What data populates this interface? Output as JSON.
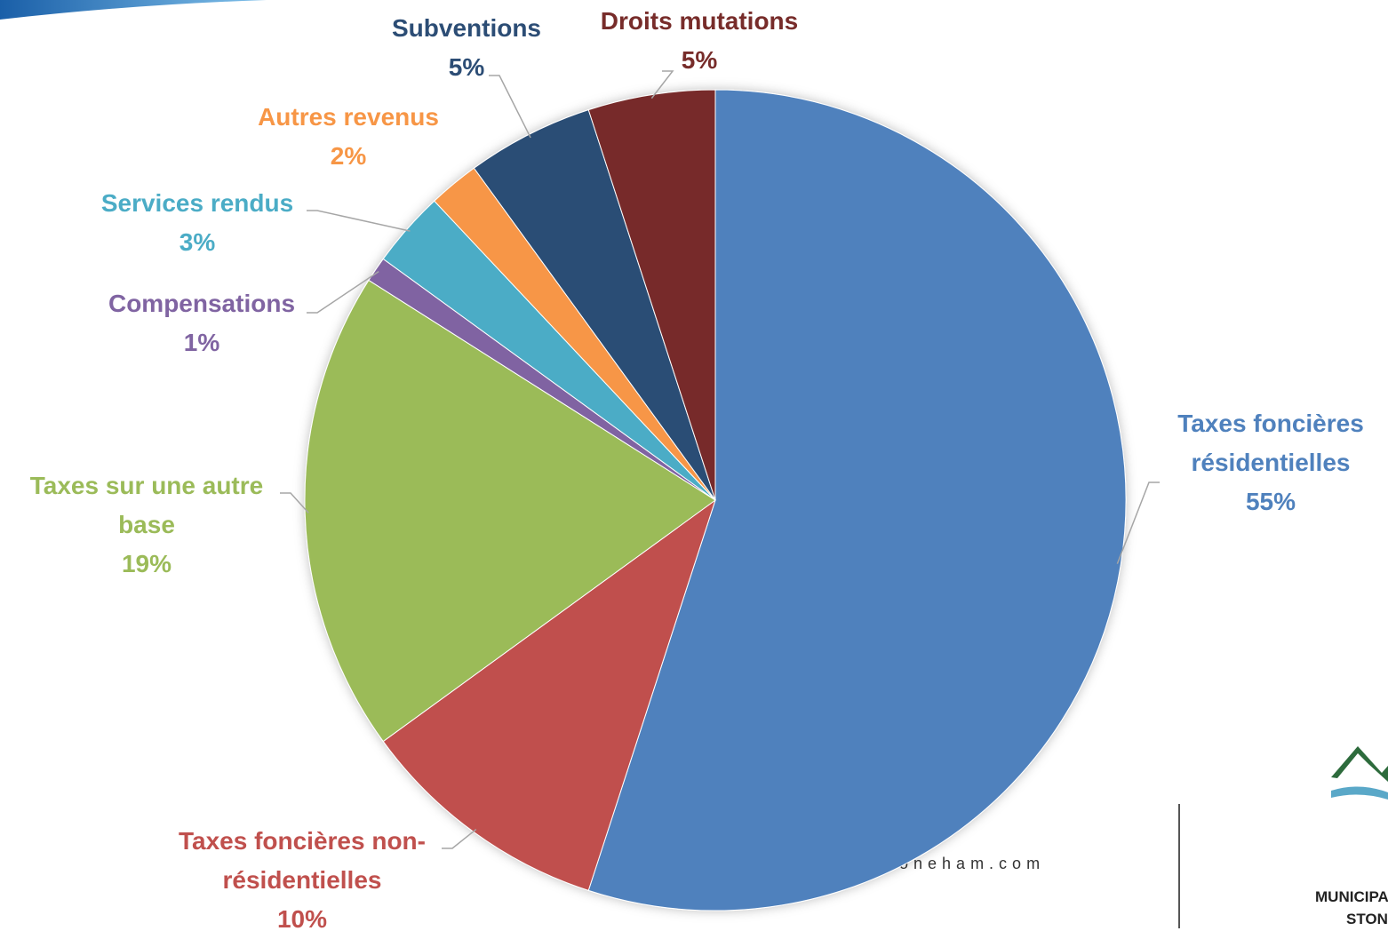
{
  "chart_data": {
    "type": "pie",
    "categories": [
      "Taxes foncières résidentielles",
      "Taxes foncières non-résidentielles",
      "Taxes sur une autre base",
      "Compensations",
      "Services rendus",
      "Autres revenus",
      "Subventions",
      "Droits mutations"
    ],
    "values": [
      55,
      10,
      19,
      1,
      3,
      2,
      5,
      5
    ],
    "value_labels": [
      "55%",
      "10%",
      "19%",
      "1%",
      "3%",
      "2%",
      "5%",
      "5%"
    ],
    "colors": [
      "#4f81bd",
      "#c0504d",
      "#9bbb59",
      "#8064a2",
      "#4bacc6",
      "#f79646",
      "#2c4d75",
      "#772c2a"
    ]
  },
  "footer": {
    "website": "lestoneham.com",
    "logo_lines": [
      "MUNICIPALITÉ DES",
      "STONEHAM-ET"
    ]
  }
}
